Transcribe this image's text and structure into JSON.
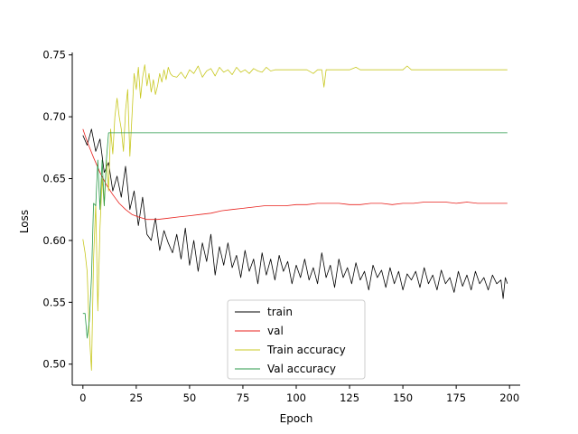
{
  "chart_data": {
    "type": "line",
    "title": "",
    "xlabel": "Epoch",
    "ylabel": "Loss",
    "xlim": [
      -5,
      205
    ],
    "ylim": [
      0.483,
      0.752
    ],
    "xticks": [
      0,
      25,
      50,
      75,
      100,
      125,
      150,
      175,
      200
    ],
    "yticks": [
      0.5,
      0.55,
      0.6,
      0.65,
      0.7,
      0.75
    ],
    "ytick_labels": [
      "0.50",
      "0.55",
      "0.60",
      "0.65",
      "0.70",
      "0.75"
    ],
    "grid": false,
    "legend": "lower-center",
    "series": [
      {
        "name": "train",
        "color": "#000000",
        "points": [
          [
            0,
            0.685
          ],
          [
            2,
            0.677
          ],
          [
            4,
            0.69
          ],
          [
            6,
            0.672
          ],
          [
            8,
            0.682
          ],
          [
            10,
            0.655
          ],
          [
            12,
            0.663
          ],
          [
            14,
            0.64
          ],
          [
            16,
            0.652
          ],
          [
            18,
            0.635
          ],
          [
            20,
            0.66
          ],
          [
            22,
            0.625
          ],
          [
            24,
            0.64
          ],
          [
            26,
            0.612
          ],
          [
            28,
            0.635
          ],
          [
            30,
            0.605
          ],
          [
            32,
            0.6
          ],
          [
            34,
            0.618
          ],
          [
            36,
            0.592
          ],
          [
            38,
            0.608
          ],
          [
            40,
            0.598
          ],
          [
            42,
            0.59
          ],
          [
            44,
            0.605
          ],
          [
            46,
            0.585
          ],
          [
            48,
            0.61
          ],
          [
            50,
            0.58
          ],
          [
            52,
            0.6
          ],
          [
            54,
            0.575
          ],
          [
            56,
            0.598
          ],
          [
            58,
            0.583
          ],
          [
            60,
            0.605
          ],
          [
            62,
            0.572
          ],
          [
            64,
            0.595
          ],
          [
            66,
            0.58
          ],
          [
            68,
            0.598
          ],
          [
            70,
            0.578
          ],
          [
            72,
            0.588
          ],
          [
            74,
            0.57
          ],
          [
            76,
            0.592
          ],
          [
            78,
            0.575
          ],
          [
            80,
            0.585
          ],
          [
            82,
            0.565
          ],
          [
            84,
            0.59
          ],
          [
            86,
            0.572
          ],
          [
            88,
            0.585
          ],
          [
            90,
            0.568
          ],
          [
            92,
            0.588
          ],
          [
            94,
            0.575
          ],
          [
            96,
            0.583
          ],
          [
            98,
            0.565
          ],
          [
            100,
            0.58
          ],
          [
            102,
            0.57
          ],
          [
            104,
            0.585
          ],
          [
            106,
            0.568
          ],
          [
            108,
            0.578
          ],
          [
            110,
            0.565
          ],
          [
            112,
            0.59
          ],
          [
            114,
            0.57
          ],
          [
            116,
            0.58
          ],
          [
            118,
            0.562
          ],
          [
            120,
            0.585
          ],
          [
            122,
            0.57
          ],
          [
            124,
            0.578
          ],
          [
            126,
            0.565
          ],
          [
            128,
            0.582
          ],
          [
            130,
            0.568
          ],
          [
            132,
            0.575
          ],
          [
            134,
            0.56
          ],
          [
            136,
            0.58
          ],
          [
            138,
            0.57
          ],
          [
            140,
            0.576
          ],
          [
            142,
            0.562
          ],
          [
            144,
            0.578
          ],
          [
            146,
            0.565
          ],
          [
            148,
            0.575
          ],
          [
            150,
            0.56
          ],
          [
            152,
            0.573
          ],
          [
            154,
            0.568
          ],
          [
            156,
            0.575
          ],
          [
            158,
            0.562
          ],
          [
            160,
            0.578
          ],
          [
            162,
            0.565
          ],
          [
            164,
            0.572
          ],
          [
            166,
            0.56
          ],
          [
            168,
            0.576
          ],
          [
            170,
            0.565
          ],
          [
            172,
            0.57
          ],
          [
            174,
            0.558
          ],
          [
            176,
            0.575
          ],
          [
            178,
            0.563
          ],
          [
            180,
            0.572
          ],
          [
            182,
            0.56
          ],
          [
            184,
            0.575
          ],
          [
            186,
            0.565
          ],
          [
            188,
            0.57
          ],
          [
            190,
            0.56
          ],
          [
            192,
            0.572
          ],
          [
            194,
            0.565
          ],
          [
            196,
            0.568
          ],
          [
            197,
            0.553
          ],
          [
            198,
            0.57
          ],
          [
            199,
            0.565
          ]
        ]
      },
      {
        "name": "val",
        "color": "#e8201c",
        "points": [
          [
            0,
            0.69
          ],
          [
            2,
            0.68
          ],
          [
            5,
            0.667
          ],
          [
            8,
            0.655
          ],
          [
            11,
            0.645
          ],
          [
            14,
            0.637
          ],
          [
            17,
            0.63
          ],
          [
            20,
            0.625
          ],
          [
            23,
            0.621
          ],
          [
            26,
            0.619
          ],
          [
            30,
            0.617
          ],
          [
            35,
            0.617
          ],
          [
            40,
            0.618
          ],
          [
            45,
            0.619
          ],
          [
            50,
            0.62
          ],
          [
            55,
            0.621
          ],
          [
            60,
            0.622
          ],
          [
            65,
            0.624
          ],
          [
            70,
            0.625
          ],
          [
            75,
            0.626
          ],
          [
            80,
            0.627
          ],
          [
            85,
            0.628
          ],
          [
            90,
            0.628
          ],
          [
            95,
            0.628
          ],
          [
            100,
            0.629
          ],
          [
            105,
            0.629
          ],
          [
            110,
            0.63
          ],
          [
            115,
            0.63
          ],
          [
            120,
            0.63
          ],
          [
            125,
            0.629
          ],
          [
            130,
            0.629
          ],
          [
            135,
            0.63
          ],
          [
            140,
            0.63
          ],
          [
            145,
            0.629
          ],
          [
            150,
            0.63
          ],
          [
            155,
            0.63
          ],
          [
            160,
            0.631
          ],
          [
            165,
            0.631
          ],
          [
            170,
            0.631
          ],
          [
            175,
            0.63
          ],
          [
            180,
            0.631
          ],
          [
            185,
            0.63
          ],
          [
            190,
            0.63
          ],
          [
            195,
            0.63
          ],
          [
            199,
            0.63
          ]
        ]
      },
      {
        "name": "Train accuracy",
        "color": "#c8c820",
        "points": [
          [
            0,
            0.601
          ],
          [
            1,
            0.59
          ],
          [
            2,
            0.575
          ],
          [
            3,
            0.525
          ],
          [
            4,
            0.495
          ],
          [
            5,
            0.585
          ],
          [
            6,
            0.63
          ],
          [
            7,
            0.543
          ],
          [
            8,
            0.61
          ],
          [
            9,
            0.65
          ],
          [
            10,
            0.628
          ],
          [
            11,
            0.665
          ],
          [
            12,
            0.64
          ],
          [
            13,
            0.69
          ],
          [
            14,
            0.67
          ],
          [
            15,
            0.7
          ],
          [
            16,
            0.715
          ],
          [
            17,
            0.7
          ],
          [
            18,
            0.69
          ],
          [
            19,
            0.672
          ],
          [
            20,
            0.705
          ],
          [
            21,
            0.722
          ],
          [
            22,
            0.668
          ],
          [
            23,
            0.7
          ],
          [
            24,
            0.735
          ],
          [
            25,
            0.722
          ],
          [
            26,
            0.74
          ],
          [
            27,
            0.715
          ],
          [
            28,
            0.732
          ],
          [
            29,
            0.742
          ],
          [
            30,
            0.725
          ],
          [
            31,
            0.735
          ],
          [
            32,
            0.72
          ],
          [
            33,
            0.73
          ],
          [
            34,
            0.718
          ],
          [
            35,
            0.725
          ],
          [
            36,
            0.735
          ],
          [
            37,
            0.728
          ],
          [
            38,
            0.738
          ],
          [
            39,
            0.73
          ],
          [
            40,
            0.74
          ],
          [
            41,
            0.735
          ],
          [
            42,
            0.733
          ],
          [
            44,
            0.732
          ],
          [
            46,
            0.736
          ],
          [
            48,
            0.731
          ],
          [
            50,
            0.738
          ],
          [
            52,
            0.735
          ],
          [
            54,
            0.741
          ],
          [
            56,
            0.732
          ],
          [
            58,
            0.737
          ],
          [
            60,
            0.739
          ],
          [
            62,
            0.733
          ],
          [
            64,
            0.74
          ],
          [
            66,
            0.736
          ],
          [
            68,
            0.738
          ],
          [
            70,
            0.734
          ],
          [
            72,
            0.74
          ],
          [
            74,
            0.736
          ],
          [
            76,
            0.738
          ],
          [
            78,
            0.735
          ],
          [
            80,
            0.739
          ],
          [
            82,
            0.737
          ],
          [
            84,
            0.736
          ],
          [
            86,
            0.74
          ],
          [
            88,
            0.737
          ],
          [
            90,
            0.738
          ],
          [
            95,
            0.738
          ],
          [
            100,
            0.738
          ],
          [
            105,
            0.738
          ],
          [
            108,
            0.735
          ],
          [
            110,
            0.738
          ],
          [
            112,
            0.738
          ],
          [
            113,
            0.724
          ],
          [
            114,
            0.738
          ],
          [
            118,
            0.738
          ],
          [
            125,
            0.738
          ],
          [
            128,
            0.74
          ],
          [
            130,
            0.738
          ],
          [
            135,
            0.738
          ],
          [
            140,
            0.738
          ],
          [
            150,
            0.738
          ],
          [
            152,
            0.741
          ],
          [
            154,
            0.738
          ],
          [
            160,
            0.738
          ],
          [
            170,
            0.738
          ],
          [
            180,
            0.738
          ],
          [
            190,
            0.738
          ],
          [
            199,
            0.738
          ]
        ]
      },
      {
        "name": "Val accuracy",
        "color": "#2a9a4a",
        "points": [
          [
            0,
            0.541
          ],
          [
            1,
            0.541
          ],
          [
            2,
            0.521
          ],
          [
            3,
            0.535
          ],
          [
            4,
            0.57
          ],
          [
            5,
            0.63
          ],
          [
            6,
            0.628
          ],
          [
            7,
            0.665
          ],
          [
            8,
            0.625
          ],
          [
            9,
            0.665
          ],
          [
            10,
            0.628
          ],
          [
            11,
            0.665
          ],
          [
            12,
            0.687
          ],
          [
            20,
            0.687
          ],
          [
            50,
            0.687
          ],
          [
            100,
            0.687
          ],
          [
            150,
            0.687
          ],
          [
            199,
            0.687
          ]
        ]
      }
    ]
  }
}
